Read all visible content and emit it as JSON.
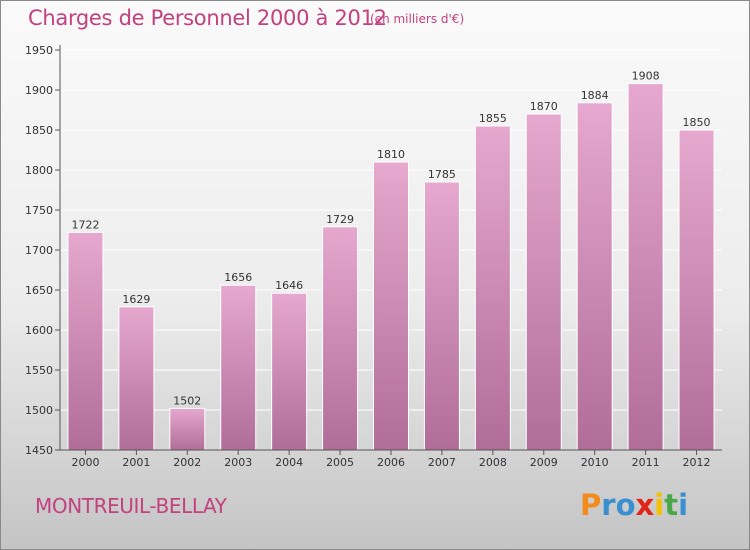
{
  "header": {
    "title": "Charges de Personnel 2000 à 2012",
    "subtitle": "(en milliers d'€)"
  },
  "footer": {
    "city": "MONTREUIL-BELLAY",
    "logo_text": "Proxiti",
    "logo_colors": [
      "#f28a1c",
      "#3a8fd0",
      "#3a8fd0",
      "#e2231a",
      "#f2c200",
      "#4aa84a",
      "#3a8fd0"
    ]
  },
  "colors": {
    "bar_top": "#e6a8cf",
    "bar_bottom": "#b06d98",
    "text": "#c4417f",
    "axis_text": "#333333"
  },
  "chart_data": {
    "type": "bar",
    "title": "Charges de Personnel 2000 à 2012",
    "categories": [
      "2000",
      "2001",
      "2002",
      "2003",
      "2004",
      "2005",
      "2006",
      "2007",
      "2008",
      "2009",
      "2010",
      "2011",
      "2012"
    ],
    "values": [
      1722,
      1629,
      1502,
      1656,
      1646,
      1729,
      1810,
      1785,
      1855,
      1870,
      1884,
      1908,
      1850
    ],
    "ylim": [
      1450,
      1950
    ],
    "yticks": [
      1450,
      1500,
      1550,
      1600,
      1650,
      1700,
      1750,
      1800,
      1850,
      1900,
      1950
    ],
    "grid": true,
    "data_labels": true
  }
}
